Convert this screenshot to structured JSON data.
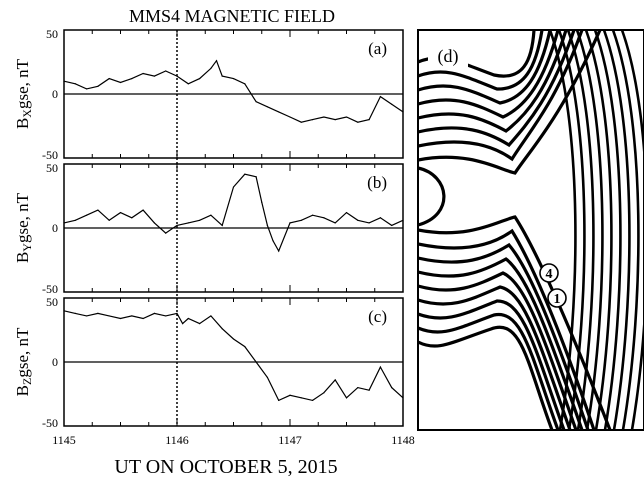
{
  "figure": {
    "title": "MMS4 MAGNETIC FIELD",
    "xlabel": "UT ON OCTOBER 5, 2015",
    "x_ticks": [
      "1145",
      "1146",
      "1147",
      "1148"
    ],
    "y_ticks": [
      "50",
      "0",
      "-50"
    ],
    "event_marker_time": 1146.0
  },
  "panels": [
    {
      "label": "(a)",
      "ylabel_main": "B",
      "ylabel_sub": "X",
      "ylabel_rest": "gse, nT"
    },
    {
      "label": "(b)",
      "ylabel_main": "B",
      "ylabel_sub": "Y",
      "ylabel_rest": "gse, nT"
    },
    {
      "label": "(c)",
      "ylabel_main": "B",
      "ylabel_sub": "Z",
      "ylabel_rest": "gse, nT"
    }
  ],
  "schematic": {
    "label": "(d)",
    "spacecraft_markers": [
      "4",
      "1"
    ]
  },
  "chart_data": [
    {
      "type": "line",
      "series": [
        {
          "name": "Bx gse",
          "x": [
            1145.0,
            1145.1,
            1145.2,
            1145.3,
            1145.4,
            1145.5,
            1145.6,
            1145.7,
            1145.8,
            1145.9,
            1146.0,
            1146.1,
            1146.2,
            1146.3,
            1146.35,
            1146.4,
            1146.5,
            1146.6,
            1146.7,
            1146.8,
            1146.9,
            1147.0,
            1147.1,
            1147.2,
            1147.3,
            1147.4,
            1147.5,
            1147.6,
            1147.7,
            1147.8,
            1147.9,
            1148.0
          ],
          "y": [
            10,
            8,
            4,
            6,
            12,
            9,
            12,
            16,
            14,
            18,
            14,
            8,
            12,
            20,
            26,
            14,
            12,
            8,
            -6,
            -10,
            -14,
            -18,
            -22,
            -20,
            -18,
            -20,
            -18,
            -22,
            -20,
            -2,
            -8,
            -14
          ]
        }
      ],
      "xlim": [
        1145,
        1148
      ],
      "ylim": [
        -50,
        50
      ]
    },
    {
      "type": "line",
      "series": [
        {
          "name": "By gse",
          "x": [
            1145.0,
            1145.1,
            1145.2,
            1145.3,
            1145.4,
            1145.5,
            1145.6,
            1145.7,
            1145.8,
            1145.9,
            1146.0,
            1146.1,
            1146.2,
            1146.3,
            1146.4,
            1146.5,
            1146.6,
            1146.7,
            1146.75,
            1146.8,
            1146.85,
            1146.9,
            1147.0,
            1147.1,
            1147.2,
            1147.3,
            1147.4,
            1147.5,
            1147.6,
            1147.7,
            1147.8,
            1147.9,
            1148.0
          ],
          "y": [
            4,
            6,
            10,
            14,
            6,
            12,
            8,
            14,
            4,
            -4,
            2,
            4,
            6,
            10,
            2,
            32,
            42,
            40,
            20,
            2,
            -10,
            -18,
            4,
            6,
            10,
            8,
            4,
            12,
            6,
            4,
            8,
            2,
            6
          ]
        }
      ],
      "xlim": [
        1145,
        1148
      ],
      "ylim": [
        -50,
        50
      ]
    },
    {
      "type": "line",
      "series": [
        {
          "name": "Bz gse",
          "x": [
            1145.0,
            1145.1,
            1145.2,
            1145.3,
            1145.4,
            1145.5,
            1145.6,
            1145.7,
            1145.8,
            1145.9,
            1146.0,
            1146.05,
            1146.1,
            1146.2,
            1146.3,
            1146.4,
            1146.5,
            1146.6,
            1146.7,
            1146.8,
            1146.9,
            1147.0,
            1147.1,
            1147.2,
            1147.3,
            1147.4,
            1147.5,
            1147.6,
            1147.7,
            1147.8,
            1147.9,
            1148.0
          ],
          "y": [
            40,
            38,
            36,
            38,
            36,
            34,
            36,
            34,
            38,
            36,
            38,
            30,
            34,
            30,
            36,
            26,
            18,
            12,
            0,
            -12,
            -30,
            -26,
            -28,
            -30,
            -24,
            -14,
            -28,
            -20,
            -22,
            -4,
            -20,
            -28
          ]
        }
      ],
      "xlim": [
        1145,
        1148
      ],
      "ylim": [
        -50,
        50
      ]
    }
  ]
}
